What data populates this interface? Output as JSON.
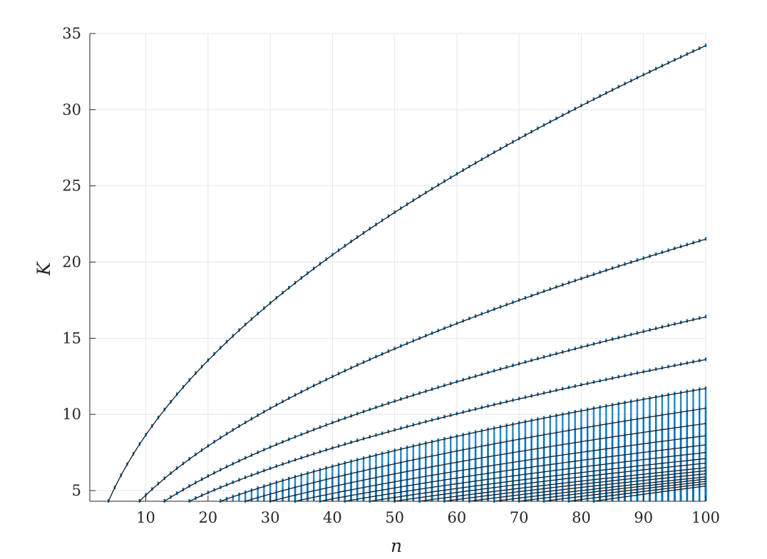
{
  "chart_data": {
    "type": "line",
    "title": "",
    "xlabel": "n",
    "ylabel": "K",
    "xlim": [
      1,
      100
    ],
    "ylim": [
      4.3,
      35
    ],
    "xticks": [
      10,
      20,
      30,
      40,
      50,
      60,
      70,
      80,
      90,
      100
    ],
    "yticks": [
      5,
      10,
      15,
      20,
      25,
      30,
      35
    ],
    "grid": true,
    "legend": "none",
    "colors": {
      "curve": "#1a1a1a",
      "points": "#0072bd",
      "grid": "#e6e6e6",
      "axis": "#262626"
    },
    "series": [
      {
        "x0": 4,
        "value_at_100": 34.2
      },
      {
        "x0": 9,
        "value_at_100": 21.5
      },
      {
        "x0": 13,
        "value_at_100": 16.4
      },
      {
        "x0": 17,
        "value_at_100": 13.6
      },
      {
        "x0": 22,
        "value_at_100": 11.7
      },
      {
        "x0": 26,
        "value_at_100": 10.4
      },
      {
        "x0": 30,
        "value_at_100": 9.4
      },
      {
        "x0": 34,
        "value_at_100": 8.6
      },
      {
        "x0": 38,
        "value_at_100": 8.0
      },
      {
        "x0": 42,
        "value_at_100": 7.5
      },
      {
        "x0": 46,
        "value_at_100": 7.1
      },
      {
        "x0": 50,
        "value_at_100": 6.8
      },
      {
        "x0": 54,
        "value_at_100": 6.5
      },
      {
        "x0": 58,
        "value_at_100": 6.3
      },
      {
        "x0": 62,
        "value_at_100": 6.1
      },
      {
        "x0": 66,
        "value_at_100": 5.9
      },
      {
        "x0": 70,
        "value_at_100": 5.75
      },
      {
        "x0": 74,
        "value_at_100": 5.6
      },
      {
        "x0": 78,
        "value_at_100": 5.45
      },
      {
        "x0": 82,
        "value_at_100": 5.3
      }
    ]
  }
}
